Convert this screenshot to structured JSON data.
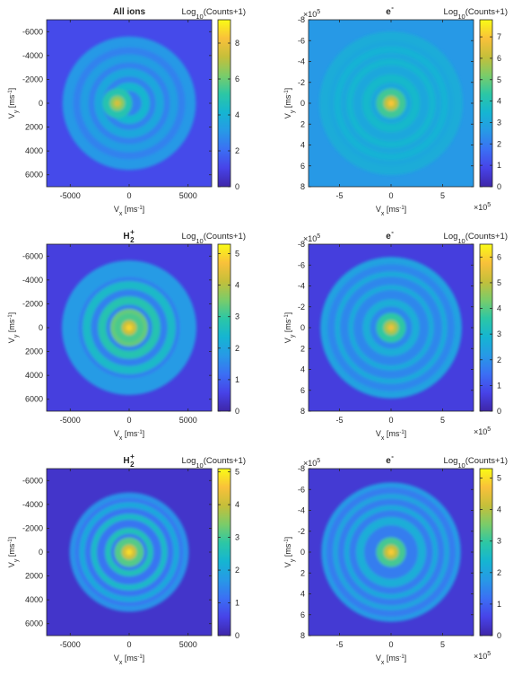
{
  "colors": {
    "colormap": [
      "#3e26a8",
      "#4743e8",
      "#3b6ff4",
      "#2799e6",
      "#15b5d2",
      "#2cc7a5",
      "#7bcc69",
      "#c5bf3a",
      "#f9c13a",
      "#f9fb15"
    ],
    "axis": "#262626",
    "background": "#ffffff"
  },
  "chart_data": [
    {
      "id": "p1",
      "type": "heatmap",
      "title": "All ions",
      "title_sup": "",
      "title_sub": "",
      "xlabel": "V_x [ms^-1]",
      "ylabel": "V_y [ms^-1]",
      "xlim": [
        -7000,
        7000
      ],
      "ylim": [
        -7000,
        7000
      ],
      "y_reversed": true,
      "xticks": [
        -5000,
        0,
        5000
      ],
      "xticklabels": [
        "-5000",
        "0",
        "5000"
      ],
      "yticks": [
        -6000,
        -4000,
        -2000,
        0,
        2000,
        4000,
        6000
      ],
      "yticklabels": [
        "-6000",
        "-4000",
        "-2000",
        "0",
        "2000",
        "4000",
        "6000"
      ],
      "axis_exponent": "",
      "colorbar": {
        "label": "Log10(Counts+1)",
        "range": [
          0,
          9.3
        ],
        "ticks": [
          0,
          2,
          4,
          6,
          8
        ],
        "ticklabels": [
          "0",
          "2",
          "4",
          "6",
          "8"
        ]
      },
      "background_level": 1.2,
      "center_spot": {
        "x": -1000,
        "y": 0,
        "level": 7.6
      },
      "rings": [
        {
          "r": 5200,
          "level": 3.1,
          "width": 900
        },
        {
          "r": 3800,
          "level": 3.3,
          "width": 700
        },
        {
          "r": 2600,
          "level": 3.6,
          "width": 700
        },
        {
          "r": 1400,
          "level": 4.2,
          "width": 700
        }
      ]
    },
    {
      "id": "p2",
      "type": "heatmap",
      "title": "e",
      "title_sup": "-",
      "title_sub": "",
      "xlabel": "V_x [ms^-1]",
      "ylabel": "V_y [ms^-1]",
      "xlim": [
        -800000,
        800000
      ],
      "ylim": [
        -800000,
        800000
      ],
      "y_reversed": true,
      "xticks": [
        -500000,
        0,
        500000
      ],
      "xticklabels": [
        "-5",
        "0",
        "5"
      ],
      "yticks": [
        -800000,
        -600000,
        -400000,
        -200000,
        0,
        200000,
        400000,
        600000,
        800000
      ],
      "yticklabels": [
        "-8",
        "-6",
        "-4",
        "-2",
        "0",
        "2",
        "4",
        "6",
        "8"
      ],
      "axis_exponent": "10^5",
      "colorbar": {
        "label": "Log10(Counts+1)",
        "range": [
          0,
          7.8
        ],
        "ticks": [
          0,
          1,
          2,
          3,
          4,
          5,
          6,
          7
        ],
        "ticklabels": [
          "0",
          "1",
          "2",
          "3",
          "4",
          "5",
          "6",
          "7"
        ]
      },
      "background_level": 2.6,
      "center_spot": {
        "x": 0,
        "y": 0,
        "level": 7.0
      },
      "rings": [
        {
          "r": 650000,
          "level": 3.2,
          "width": 90000
        },
        {
          "r": 520000,
          "level": 3.4,
          "width": 60000
        },
        {
          "r": 400000,
          "level": 3.5,
          "width": 60000
        },
        {
          "r": 240000,
          "level": 3.6,
          "width": 80000
        }
      ]
    },
    {
      "id": "p3",
      "type": "heatmap",
      "title": "H",
      "title_sup": "+",
      "title_sub": "2",
      "xlabel": "V_x [ms^-1]",
      "ylabel": "V_y [ms^-1]",
      "xlim": [
        -7000,
        7000
      ],
      "ylim": [
        -7000,
        7000
      ],
      "y_reversed": true,
      "xticks": [
        -5000,
        0,
        5000
      ],
      "xticklabels": [
        "-5000",
        "0",
        "5000"
      ],
      "yticks": [
        -6000,
        -4000,
        -2000,
        0,
        2000,
        4000,
        6000
      ],
      "yticklabels": [
        "-6000",
        "-4000",
        "-2000",
        "0",
        "2000",
        "4000",
        "6000"
      ],
      "axis_exponent": "",
      "colorbar": {
        "label": "Log10(Counts+1)",
        "range": [
          0,
          5.3
        ],
        "ticks": [
          0,
          1,
          2,
          3,
          4,
          5
        ],
        "ticklabels": [
          "0",
          "1",
          "2",
          "3",
          "4",
          "5"
        ]
      },
      "background_level": 0.5,
      "center_spot": {
        "x": 0,
        "y": 0,
        "level": 4.9
      },
      "rings": [
        {
          "r": 5000,
          "level": 1.8,
          "width": 1400
        },
        {
          "r": 3600,
          "level": 2.5,
          "width": 700
        },
        {
          "r": 2300,
          "level": 2.8,
          "width": 700
        },
        {
          "r": 1200,
          "level": 3.4,
          "width": 800
        }
      ]
    },
    {
      "id": "p4",
      "type": "heatmap",
      "title": "e",
      "title_sup": "-",
      "title_sub": "",
      "xlabel": "V_x [ms^-1]",
      "ylabel": "V_y [ms^-1]",
      "xlim": [
        -800000,
        800000
      ],
      "ylim": [
        -800000,
        800000
      ],
      "y_reversed": true,
      "xticks": [
        -500000,
        0,
        500000
      ],
      "xticklabels": [
        "-5",
        "0",
        "5"
      ],
      "yticks": [
        -800000,
        -600000,
        -400000,
        -200000,
        0,
        200000,
        400000,
        600000,
        800000
      ],
      "yticklabels": [
        "-8",
        "-6",
        "-4",
        "-2",
        "0",
        "2",
        "4",
        "6",
        "8"
      ],
      "axis_exponent": "10^5",
      "colorbar": {
        "label": "Log10(Counts+1)",
        "range": [
          0,
          6.5
        ],
        "ticks": [
          0,
          1,
          2,
          3,
          4,
          5,
          6
        ],
        "ticklabels": [
          "0",
          "1",
          "2",
          "3",
          "4",
          "5",
          "6"
        ]
      },
      "background_level": 0.6,
      "center_spot": {
        "x": 0,
        "y": 0,
        "level": 5.6
      },
      "rings": [
        {
          "r": 650000,
          "level": 2.4,
          "width": 70000
        },
        {
          "r": 520000,
          "level": 2.6,
          "width": 50000
        },
        {
          "r": 390000,
          "level": 2.6,
          "width": 50000
        },
        {
          "r": 240000,
          "level": 2.7,
          "width": 70000
        }
      ]
    },
    {
      "id": "p5",
      "type": "heatmap",
      "title": "H",
      "title_sup": "+",
      "title_sub": "2",
      "xlabel": "V_x [ms^-1]",
      "ylabel": "V_y [ms^-1]",
      "xlim": [
        -7000,
        7000
      ],
      "ylim": [
        -7000,
        7000
      ],
      "y_reversed": true,
      "xticks": [
        -5000,
        0,
        5000
      ],
      "xticklabels": [
        "-5000",
        "0",
        "5000"
      ],
      "yticks": [
        -6000,
        -4000,
        -2000,
        0,
        2000,
        4000,
        6000
      ],
      "yticklabels": [
        "-6000",
        "-4000",
        "-2000",
        "0",
        "2000",
        "4000",
        "6000"
      ],
      "axis_exponent": "",
      "colorbar": {
        "label": "Log10(Counts+1)",
        "range": [
          0,
          5.1
        ],
        "ticks": [
          0,
          1,
          2,
          3,
          4,
          5
        ],
        "ticklabels": [
          "0",
          "1",
          "2",
          "3",
          "4",
          "5"
        ]
      },
      "background_level": 0.3,
      "center_spot": {
        "x": 0,
        "y": 0,
        "level": 4.8
      },
      "rings": [
        {
          "r": 4800,
          "level": 1.6,
          "width": 500
        },
        {
          "r": 4000,
          "level": 2.0,
          "width": 500
        },
        {
          "r": 3000,
          "level": 2.4,
          "width": 500
        },
        {
          "r": 1800,
          "level": 2.6,
          "width": 500
        }
      ]
    },
    {
      "id": "p6",
      "type": "heatmap",
      "title": "e",
      "title_sup": "-",
      "title_sub": "",
      "xlabel": "V_x [ms^-1]",
      "ylabel": "V_y [ms^-1]",
      "xlim": [
        -800000,
        800000
      ],
      "ylim": [
        -800000,
        800000
      ],
      "y_reversed": true,
      "xticks": [
        -500000,
        0,
        500000
      ],
      "xticklabels": [
        "-5",
        "0",
        "5"
      ],
      "yticks": [
        -800000,
        -600000,
        -400000,
        -200000,
        0,
        200000,
        400000,
        600000,
        800000
      ],
      "yticklabels": [
        "-8",
        "-6",
        "-4",
        "-2",
        "0",
        "2",
        "4",
        "6",
        "8"
      ],
      "axis_exponent": "10^5",
      "colorbar": {
        "label": "Log10(Counts+1)",
        "range": [
          0,
          5.3
        ],
        "ticks": [
          0,
          1,
          2,
          3,
          4,
          5
        ],
        "ticklabels": [
          "0",
          "1",
          "2",
          "3",
          "4",
          "5"
        ]
      },
      "background_level": 0.4,
      "center_spot": {
        "x": 0,
        "y": 0,
        "level": 4.8
      },
      "rings": [
        {
          "r": 650000,
          "level": 1.8,
          "width": 50000
        },
        {
          "r": 540000,
          "level": 2.0,
          "width": 50000
        },
        {
          "r": 430000,
          "level": 2.1,
          "width": 50000
        },
        {
          "r": 300000,
          "level": 2.2,
          "width": 80000
        }
      ]
    }
  ]
}
